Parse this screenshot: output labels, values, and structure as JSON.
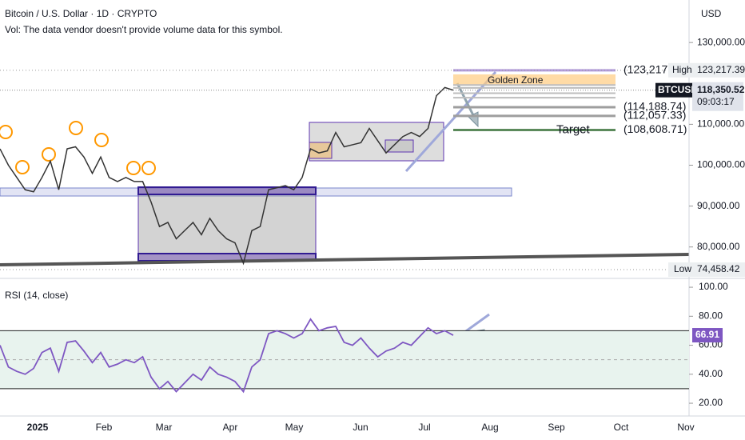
{
  "chart_data": {
    "type": "line",
    "title": "Bitcoin / U.S. Dollar · 1D · CRYPTO",
    "subtitle": "Vol: The data vendor doesn't provide volume data for this symbol.",
    "currency": "USD",
    "series": [
      {
        "name": "BTCUSD",
        "color": "#333333",
        "values": [
          104000,
          100000,
          97000,
          94000,
          93500,
          97000,
          101000,
          94000,
          104000,
          104500,
          102000,
          98000,
          102000,
          97000,
          96000,
          97000,
          96000,
          96000,
          91000,
          85000,
          86000,
          82000,
          84000,
          86000,
          83000,
          87000,
          84000,
          82000,
          81000,
          76000,
          84000,
          85000,
          94000,
          94500,
          95000,
          94000,
          97000,
          104000,
          103000,
          103500,
          108000,
          104500,
          105000,
          105500,
          109000,
          106000,
          103000,
          105000,
          107000,
          108000,
          107000,
          109000,
          117000,
          119000,
          118350.52
        ]
      }
    ],
    "ylim": [
      72900,
      140400
    ],
    "yticks": [
      {
        "value": 130000,
        "label": "130,000.00"
      },
      {
        "value": 110000,
        "label": "110,000.00"
      },
      {
        "value": 100000,
        "label": "100,000.00"
      },
      {
        "value": 90000,
        "label": "90,000.00"
      },
      {
        "value": 80000,
        "label": "80,000.00"
      }
    ],
    "last_price": {
      "value": 118350.52,
      "label": "118,350.52",
      "symbol": "BTCUSD",
      "countdown": "09:03:17"
    },
    "high": {
      "name": "High",
      "value": 123217.39,
      "label": "123,217.39"
    },
    "low": {
      "name": "Low",
      "value": 74458.42,
      "label": "74,458.42"
    },
    "fib_levels": [
      {
        "value": 123217,
        "label": "(123,217",
        "color": "#b39ddb"
      },
      {
        "value": 114188.74,
        "label": "(114,188.74)",
        "color": "#9e9e9e"
      },
      {
        "value": 112057.33,
        "label": "(112,057.33)",
        "color": "#9e9e9e"
      },
      {
        "value": 108608.71,
        "label": "(108,608.71)",
        "color": "#5b8a5b"
      }
    ],
    "golden_zone_label": "Golden Zone",
    "target_label": "Target",
    "x_labels": [
      "2025",
      "Feb",
      "Mar",
      "Apr",
      "May",
      "Jun",
      "Jul",
      "Aug",
      "Sep",
      "Oct",
      "Nov"
    ],
    "rsi": {
      "title": "RSI (14, close)",
      "color": "#7e57c2",
      "values": [
        60,
        45,
        42,
        40,
        44,
        55,
        58,
        42,
        62,
        63,
        56,
        48,
        55,
        45,
        47,
        50,
        48,
        52,
        38,
        30,
        35,
        28,
        34,
        40,
        36,
        45,
        40,
        38,
        35,
        28,
        45,
        50,
        68,
        70,
        68,
        65,
        68,
        78,
        70,
        72,
        73,
        62,
        60,
        65,
        58,
        52,
        56,
        58,
        62,
        60,
        66,
        72,
        68,
        70,
        66.91
      ],
      "ylim": [
        11.2,
        105
      ],
      "yticks": [
        {
          "value": 100,
          "label": "100.00"
        },
        {
          "value": 80,
          "label": "80.00"
        },
        {
          "value": 60,
          "label": "60.00"
        },
        {
          "value": 40,
          "label": "40.00"
        },
        {
          "value": 20,
          "label": "20.00"
        }
      ],
      "bands": [
        70,
        50,
        30
      ],
      "last": {
        "value": 66.91,
        "label": "66.91"
      }
    }
  }
}
